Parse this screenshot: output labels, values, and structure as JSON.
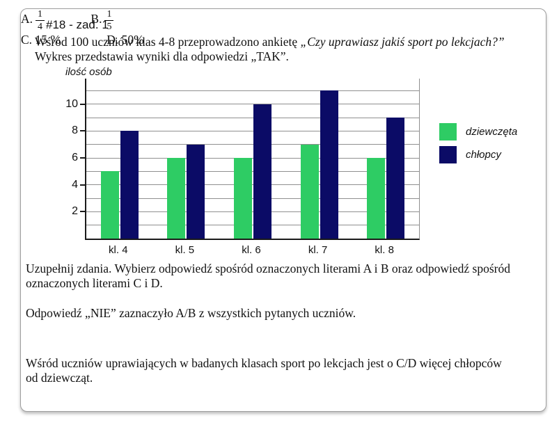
{
  "header": {
    "title": "#18 - zad. 1"
  },
  "intro": {
    "line1_regular": "Wśród 100 uczniów klas 4-8 przeprowadzono ankietę ",
    "line1_italic": "„Czy uprawiasz jakiś sport po lekcjach?”",
    "line2": "Wykres przedstawia wyniki dla odpowiedzi „TAK”."
  },
  "chart_data": {
    "type": "bar",
    "title": "",
    "ylabel": "ilość osób",
    "xlabel": "",
    "categories": [
      "kl. 4",
      "kl. 5",
      "kl. 6",
      "kl. 7",
      "kl. 8"
    ],
    "series": [
      {
        "name": "dziewczęta",
        "color": "#2ecc64",
        "values": [
          5,
          6,
          6,
          7,
          6
        ]
      },
      {
        "name": "chłopcy",
        "color": "#0b0b66",
        "values": [
          8,
          7,
          10,
          11,
          9
        ]
      }
    ],
    "ylim": [
      0,
      11.9
    ],
    "yticks": [
      2,
      4,
      6,
      8,
      10
    ],
    "gridline_step": 1,
    "gridline_max": 11,
    "grid": true,
    "legend_position": "right"
  },
  "questions": {
    "instruction_line1": "Uzupełnij zdania. Wybierz odpowiedź spośród oznaczonych literami A i B oraz odpowiedź spośród",
    "instruction_line2": "oznaczonych literami C i D.",
    "q1": {
      "text": "Odpowiedź „NIE” zaznaczyło A/B z wszystkich pytanych uczniów.",
      "options": [
        {
          "label": "A.",
          "numerator": "1",
          "denominator": "4"
        },
        {
          "label": "B.",
          "numerator": "1",
          "denominator": "5"
        }
      ]
    },
    "q2": {
      "text_line1": "Wśród uczniów uprawiających w badanych klasach sport po lekcjach jest o C/D więcej chłopców",
      "text_line2": "od dziewcząt.",
      "options": [
        {
          "label": "C.",
          "value": "15 %"
        },
        {
          "label": "D.",
          "value": "50%"
        }
      ]
    }
  }
}
